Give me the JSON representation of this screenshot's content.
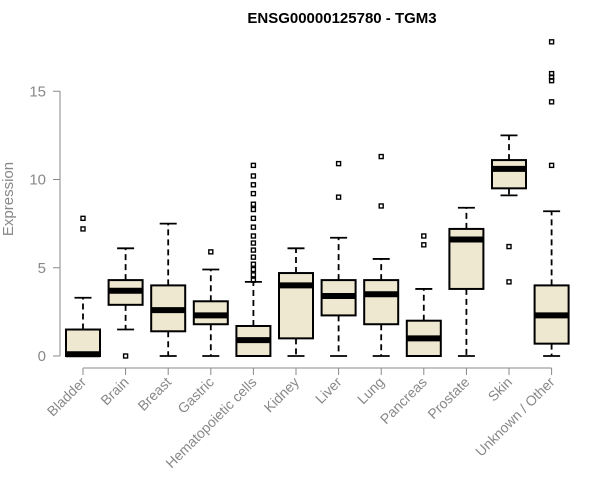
{
  "chart_data": {
    "type": "boxplot",
    "title": "ENSG00000125780 - TGM3",
    "ylabel": "Expression",
    "xlabel": "",
    "ylim": [
      0,
      18
    ],
    "yticks": [
      0,
      5,
      10,
      15
    ],
    "grid": false,
    "box_color": "#efe8d0",
    "categories": [
      "Bladder",
      "Brain",
      "Breast",
      "Gastric",
      "Hematopoietic cells",
      "Kidney",
      "Liver",
      "Lung",
      "Pancreas",
      "Prostate",
      "Skin",
      "Unknown / Other"
    ],
    "boxes": [
      {
        "category": "Bladder",
        "whisker_low": 0,
        "q1": 0,
        "median": 0.1,
        "q3": 1.5,
        "whisker_high": 3.3,
        "outliers": [
          7.2,
          7.8
        ]
      },
      {
        "category": "Brain",
        "whisker_low": 1.5,
        "q1": 2.9,
        "median": 3.7,
        "q3": 4.3,
        "whisker_high": 6.1,
        "outliers": [
          0
        ]
      },
      {
        "category": "Breast",
        "whisker_low": 0,
        "q1": 1.4,
        "median": 2.6,
        "q3": 4.0,
        "whisker_high": 7.5,
        "outliers": []
      },
      {
        "category": "Gastric",
        "whisker_low": 0,
        "q1": 1.8,
        "median": 2.3,
        "q3": 3.1,
        "whisker_high": 4.9,
        "outliers": [
          5.9
        ]
      },
      {
        "category": "Hematopoietic cells",
        "whisker_low": 0,
        "q1": 0,
        "median": 0.9,
        "q3": 1.7,
        "whisker_high": 4.2,
        "outliers": [
          4.3,
          4.6,
          4.9,
          5.2,
          5.6,
          6.0,
          6.4,
          6.8,
          7.3,
          7.8,
          8.3,
          8.6,
          9.2,
          9.7,
          10.2,
          10.8
        ]
      },
      {
        "category": "Kidney",
        "whisker_low": 0,
        "q1": 1.0,
        "median": 4.0,
        "q3": 4.7,
        "whisker_high": 6.1,
        "outliers": []
      },
      {
        "category": "Liver",
        "whisker_low": 0,
        "q1": 2.3,
        "median": 3.4,
        "q3": 4.3,
        "whisker_high": 6.7,
        "outliers": [
          9.0,
          10.9
        ]
      },
      {
        "category": "Lung",
        "whisker_low": 0,
        "q1": 1.8,
        "median": 3.5,
        "q3": 4.3,
        "whisker_high": 5.5,
        "outliers": [
          8.5,
          11.3
        ]
      },
      {
        "category": "Pancreas",
        "whisker_low": 0,
        "q1": 0,
        "median": 1.0,
        "q3": 2.0,
        "whisker_high": 3.8,
        "outliers": [
          6.3,
          6.8
        ]
      },
      {
        "category": "Prostate",
        "whisker_low": 0,
        "q1": 3.8,
        "median": 6.6,
        "q3": 7.2,
        "whisker_high": 8.4,
        "outliers": []
      },
      {
        "category": "Skin",
        "whisker_low": 9.1,
        "q1": 9.5,
        "median": 10.6,
        "q3": 11.1,
        "whisker_high": 12.5,
        "outliers": [
          4.2,
          6.2
        ]
      },
      {
        "category": "Unknown / Other",
        "whisker_low": 0,
        "q1": 0.7,
        "median": 2.3,
        "q3": 4.0,
        "whisker_high": 8.2,
        "outliers": [
          10.8,
          14.4,
          15.6,
          15.8,
          16.0,
          17.8
        ]
      }
    ]
  }
}
